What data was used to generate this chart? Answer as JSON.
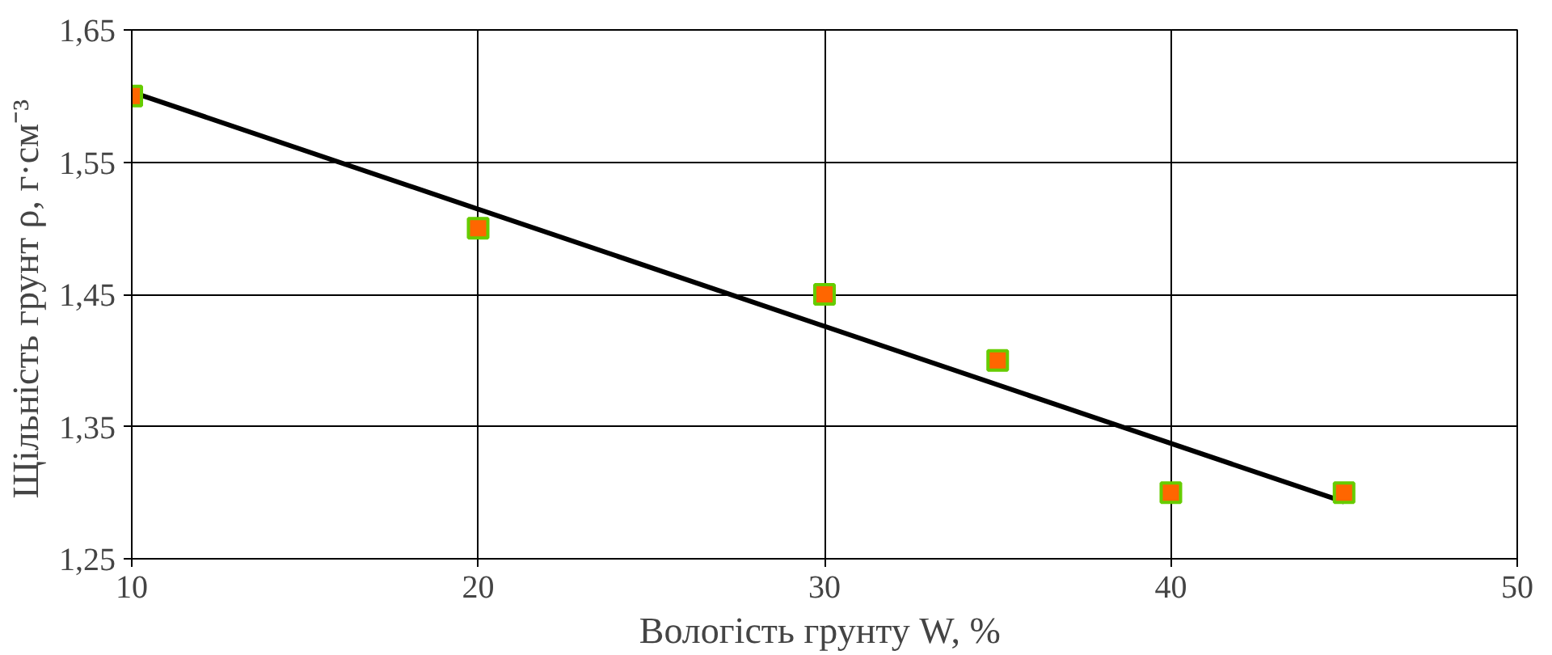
{
  "chart_data": {
    "type": "scatter",
    "xlabel": "Вологість грунту  W, %",
    "ylabel": "Щільність грунт  ρ, г·см⁻³",
    "xlim": [
      10,
      50
    ],
    "xticks": [
      10,
      20,
      30,
      40,
      50
    ],
    "ylim": [
      1.25,
      1.65
    ],
    "yticks": [
      {
        "value": 1.25,
        "label": "1,25"
      },
      {
        "value": 1.35,
        "label": "1,35"
      },
      {
        "value": 1.45,
        "label": "1,45"
      },
      {
        "value": 1.55,
        "label": "1,55"
      },
      {
        "value": 1.65,
        "label": "1,65"
      }
    ],
    "grid": true,
    "series": [
      {
        "type": "line",
        "color": "#000000",
        "x": [
          10,
          45
        ],
        "values": [
          1.603,
          1.293
        ],
        "line_style": "solid"
      },
      {
        "color": "#ff6600",
        "x": [
          10,
          20,
          30,
          35,
          40,
          45
        ],
        "values": [
          1.6,
          1.5,
          1.45,
          1.4,
          1.3,
          1.3
        ],
        "marker": "square"
      }
    ]
  }
}
